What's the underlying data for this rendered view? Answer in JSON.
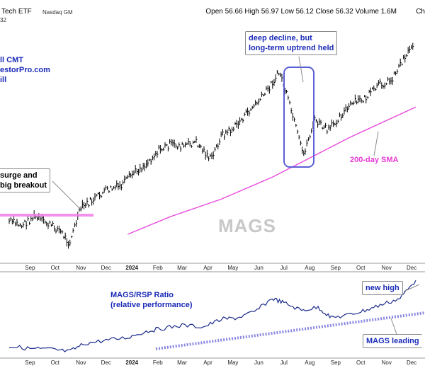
{
  "header": {
    "name": "Tech ETF",
    "exchange": "Nasdaq GM",
    "ohlc": "Open 56.66  High 56.97  Low 56.12  Close 56.32  Volume 1.6M",
    "chart_label": "Ch",
    "last_price": "32"
  },
  "annotations": {
    "source_line1": "ll CMT",
    "source_line2": "estorPro.com",
    "source_line3": "ill",
    "surge_line1": "surge and",
    "surge_line2": "big breakout",
    "decline_line1": "deep decline, but",
    "decline_line2": "long-term uptrend held",
    "sma_label": "200-day SMA",
    "symbol": "MAGS",
    "ratio_line1": "MAGS/RSP Ratio",
    "ratio_line2": "(relative performance)",
    "new_high": "new high",
    "leading": "MAGS leading"
  },
  "months_top": [
    "Sep",
    "Oct",
    "Nov",
    "Dec",
    "2024",
    "Feb",
    "Mar",
    "Apr",
    "May",
    "Jun",
    "Jul",
    "Aug",
    "Sep",
    "Oct",
    "Nov",
    "Dec"
  ],
  "months_bottom": [
    "Sep",
    "Oct",
    "Nov",
    "Dec",
    "2024",
    "Feb",
    "Mar",
    "Apr",
    "May",
    "Jun",
    "Jul",
    "Aug",
    "Sep",
    "Oct",
    "Nov",
    "Dec"
  ],
  "colors": {
    "price_bars": "#000000",
    "sma": "#e84bdc",
    "breakout_line": "#f07de8",
    "ratio": "#1b2b8a",
    "trend_dotted": "#8a88e0",
    "annotation_text": "#1b2bb8",
    "box_border": "#5a5fd6"
  },
  "chart_data": [
    {
      "type": "line",
      "name_printed": "MAGS",
      "description": "Daily price bars (OHLC) for MAGS, approximated by date and close",
      "x": [
        "2023-08-21",
        "2023-09-05",
        "2023-09-20",
        "2023-10-05",
        "2023-10-20",
        "2023-11-01",
        "2023-11-15",
        "2023-12-01",
        "2023-12-15",
        "2024-01-02",
        "2024-01-17",
        "2024-02-01",
        "2024-02-15",
        "2024-03-01",
        "2024-03-15",
        "2024-04-01",
        "2024-04-19",
        "2024-05-01",
        "2024-05-15",
        "2024-06-03",
        "2024-06-18",
        "2024-07-10",
        "2024-07-24",
        "2024-08-07",
        "2024-08-21",
        "2024-09-06",
        "2024-09-20",
        "2024-10-07",
        "2024-10-21",
        "2024-11-06",
        "2024-11-20",
        "2024-12-05",
        "2024-12-17"
      ],
      "y": [
        0.16,
        0.14,
        0.18,
        0.15,
        0.12,
        0.06,
        0.22,
        0.26,
        0.3,
        0.32,
        0.38,
        0.42,
        0.48,
        0.51,
        0.5,
        0.52,
        0.44,
        0.55,
        0.58,
        0.66,
        0.72,
        0.84,
        0.66,
        0.46,
        0.62,
        0.57,
        0.64,
        0.7,
        0.72,
        0.78,
        0.8,
        0.9,
        0.97
      ],
      "sma_200": {
        "x": [
          "2024-01-10",
          "2024-03-01",
          "2024-05-01",
          "2024-07-01",
          "2024-08-01",
          "2024-10-01",
          "2024-12-20"
        ],
        "y": [
          0.1,
          0.18,
          0.26,
          0.36,
          0.42,
          0.54,
          0.68
        ]
      }
    },
    {
      "type": "line",
      "name_printed": "MAGS/RSP Ratio",
      "x": [
        "2023-08-21",
        "2023-09-15",
        "2023-10-10",
        "2023-11-01",
        "2023-11-20",
        "2023-12-15",
        "2024-01-10",
        "2024-02-01",
        "2024-02-20",
        "2024-03-15",
        "2024-04-10",
        "2024-05-01",
        "2024-05-20",
        "2024-06-10",
        "2024-07-01",
        "2024-07-15",
        "2024-08-05",
        "2024-08-25",
        "2024-09-10",
        "2024-10-01",
        "2024-10-20",
        "2024-11-10",
        "2024-12-01",
        "2024-12-20"
      ],
      "y": [
        0.1,
        0.07,
        0.06,
        0.03,
        0.14,
        0.18,
        0.22,
        0.3,
        0.34,
        0.38,
        0.36,
        0.46,
        0.48,
        0.56,
        0.74,
        0.68,
        0.58,
        0.62,
        0.48,
        0.52,
        0.58,
        0.66,
        0.74,
        0.98
      ]
    }
  ]
}
